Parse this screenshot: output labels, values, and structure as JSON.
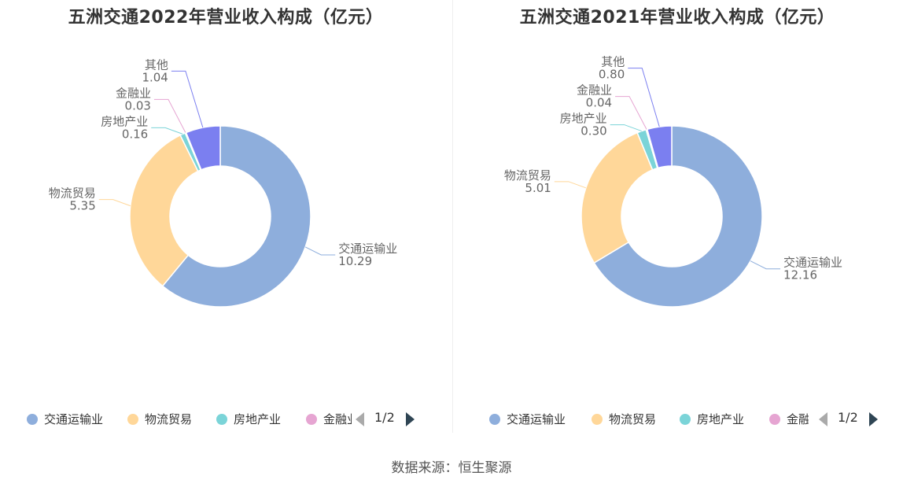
{
  "source": "数据来源：恒生聚源",
  "chart_data": [
    {
      "type": "pie",
      "variant": "donut",
      "title": "五洲交通2022年营业收入构成（亿元）",
      "categories": [
        "交通运输业",
        "物流贸易",
        "房地产业",
        "金融业",
        "其他"
      ],
      "values": [
        10.29,
        5.35,
        0.16,
        0.03,
        1.04
      ],
      "value_labels": [
        "10.29",
        "5.35",
        "0.16",
        "0.03",
        "1.04"
      ],
      "colors": [
        "#8eaedc",
        "#ffd799",
        "#7bd4d8",
        "#e6a5d2",
        "#7b7ff0"
      ],
      "legend": {
        "placement": "bottom",
        "visible_items": [
          "交通运输业",
          "物流贸易",
          "房地产业"
        ],
        "truncated_item": "金融业",
        "page": "1/2"
      }
    },
    {
      "type": "pie",
      "variant": "donut",
      "title": "五洲交通2021年营业收入构成（亿元）",
      "categories": [
        "交通运输业",
        "物流贸易",
        "房地产业",
        "金融业",
        "其他"
      ],
      "values": [
        12.16,
        5.01,
        0.3,
        0.04,
        0.8
      ],
      "value_labels": [
        "12.16",
        "5.01",
        "0.30",
        "0.04",
        "0.80"
      ],
      "colors": [
        "#8eaedc",
        "#ffd799",
        "#7bd4d8",
        "#e6a5d2",
        "#7b7ff0"
      ],
      "legend": {
        "placement": "bottom",
        "visible_items": [
          "交通运输业",
          "物流贸易",
          "房地产业"
        ],
        "truncated_item": "金融业",
        "page": "1/2"
      }
    }
  ]
}
